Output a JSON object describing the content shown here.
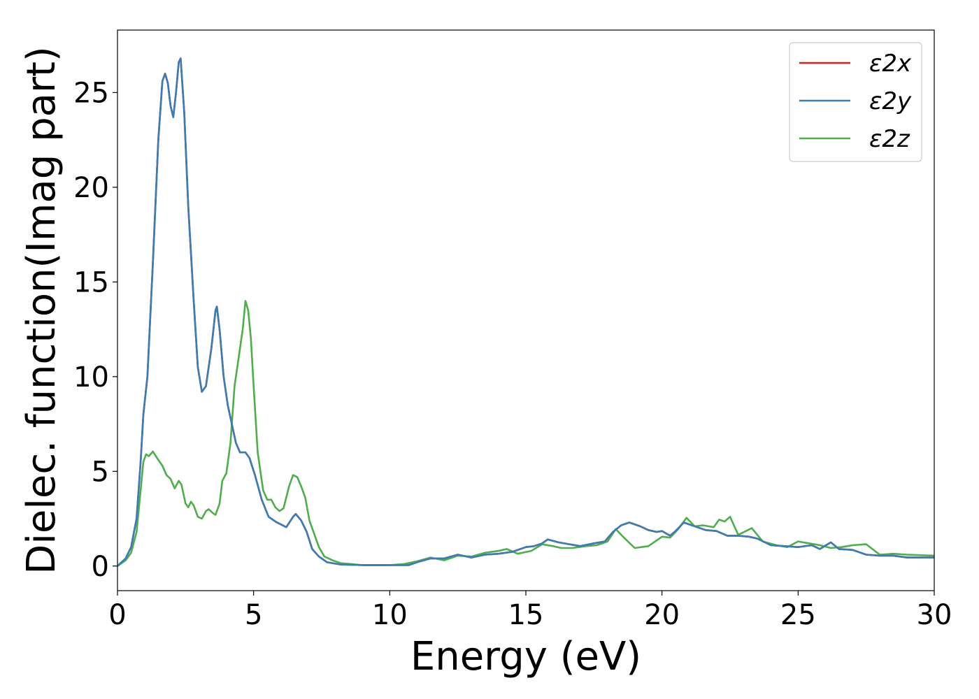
{
  "chart_data": {
    "type": "line",
    "title": "",
    "xlabel": "Energy (eV)",
    "ylabel": "Dielec. function(Imag part)",
    "xlim": [
      0,
      30
    ],
    "ylim": [
      -1.3,
      28.3
    ],
    "xticks": [
      0,
      5,
      10,
      15,
      20,
      25,
      30
    ],
    "yticks": [
      0,
      5,
      10,
      15,
      20,
      25
    ],
    "grid": false,
    "legend_position": "top-right",
    "series": [
      {
        "name": "ε2x",
        "color": "#e41a1c",
        "points": [
          [
            0,
            0
          ],
          [
            0.3,
            0.4
          ],
          [
            0.5,
            1
          ],
          [
            0.7,
            2.5
          ],
          [
            0.85,
            5.5
          ],
          [
            0.95,
            8
          ],
          [
            1.1,
            10
          ],
          [
            1.3,
            16
          ],
          [
            1.5,
            22.5
          ],
          [
            1.65,
            25.6
          ],
          [
            1.75,
            26
          ],
          [
            1.85,
            25.5
          ],
          [
            1.95,
            24.3
          ],
          [
            2.05,
            23.7
          ],
          [
            2.15,
            25
          ],
          [
            2.25,
            26.6
          ],
          [
            2.32,
            26.8
          ],
          [
            2.45,
            24
          ],
          [
            2.6,
            19
          ],
          [
            2.8,
            14
          ],
          [
            2.95,
            10.5
          ],
          [
            3.1,
            9.2
          ],
          [
            3.25,
            9.5
          ],
          [
            3.45,
            11.5
          ],
          [
            3.6,
            13.5
          ],
          [
            3.65,
            13.7
          ],
          [
            3.75,
            12.5
          ],
          [
            3.9,
            10
          ],
          [
            4.05,
            8.5
          ],
          [
            4.2,
            7.5
          ],
          [
            4.35,
            6.5
          ],
          [
            4.5,
            6
          ],
          [
            4.7,
            6
          ],
          [
            4.85,
            5.7
          ],
          [
            5.05,
            4.8
          ],
          [
            5.3,
            3.5
          ],
          [
            5.55,
            2.6
          ],
          [
            5.8,
            2.35
          ],
          [
            6.0,
            2.2
          ],
          [
            6.2,
            2.05
          ],
          [
            6.45,
            2.6
          ],
          [
            6.55,
            2.75
          ],
          [
            6.75,
            2.4
          ],
          [
            6.95,
            1.8
          ],
          [
            7.15,
            0.9
          ],
          [
            7.4,
            0.5
          ],
          [
            7.7,
            0.2
          ],
          [
            8.2,
            0.08
          ],
          [
            9,
            0.05
          ],
          [
            10,
            0.05
          ],
          [
            10.7,
            0.05
          ],
          [
            11,
            0.2
          ],
          [
            11.5,
            0.4
          ],
          [
            12,
            0.4
          ],
          [
            12.5,
            0.6
          ],
          [
            13,
            0.45
          ],
          [
            13.5,
            0.6
          ],
          [
            14,
            0.65
          ],
          [
            14.5,
            0.75
          ],
          [
            15,
            1
          ],
          [
            15.3,
            1.05
          ],
          [
            15.6,
            1.2
          ],
          [
            15.8,
            1.4
          ],
          [
            16.2,
            1.25
          ],
          [
            16.6,
            1.15
          ],
          [
            17,
            1.05
          ],
          [
            17.5,
            1.2
          ],
          [
            17.9,
            1.3
          ],
          [
            18.2,
            1.8
          ],
          [
            18.5,
            2.15
          ],
          [
            18.8,
            2.3
          ],
          [
            19.2,
            2.1
          ],
          [
            19.5,
            1.9
          ],
          [
            19.8,
            1.8
          ],
          [
            20,
            1.85
          ],
          [
            20.3,
            1.6
          ],
          [
            20.5,
            1.85
          ],
          [
            20.8,
            2.3
          ],
          [
            21.2,
            2.1
          ],
          [
            21.6,
            1.9
          ],
          [
            22,
            1.85
          ],
          [
            22.4,
            1.6
          ],
          [
            22.8,
            1.6
          ],
          [
            23.2,
            1.55
          ],
          [
            23.5,
            1.45
          ],
          [
            24,
            1.1
          ],
          [
            24.5,
            1.05
          ],
          [
            25,
            1
          ],
          [
            25.5,
            1.1
          ],
          [
            25.8,
            0.9
          ],
          [
            26.2,
            1.25
          ],
          [
            26.5,
            0.9
          ],
          [
            27,
            0.85
          ],
          [
            27.5,
            0.6
          ],
          [
            28,
            0.55
          ],
          [
            28.5,
            0.55
          ],
          [
            29,
            0.45
          ],
          [
            30,
            0.45
          ]
        ]
      },
      {
        "name": "ε2y",
        "color": "#377eb8",
        "points": [
          [
            0,
            0
          ],
          [
            0.3,
            0.4
          ],
          [
            0.5,
            1
          ],
          [
            0.7,
            2.5
          ],
          [
            0.85,
            5.5
          ],
          [
            0.95,
            8
          ],
          [
            1.1,
            10
          ],
          [
            1.3,
            16
          ],
          [
            1.5,
            22.5
          ],
          [
            1.65,
            25.6
          ],
          [
            1.75,
            26
          ],
          [
            1.85,
            25.5
          ],
          [
            1.95,
            24.3
          ],
          [
            2.05,
            23.7
          ],
          [
            2.15,
            25
          ],
          [
            2.25,
            26.6
          ],
          [
            2.32,
            26.8
          ],
          [
            2.45,
            24
          ],
          [
            2.6,
            19
          ],
          [
            2.8,
            14
          ],
          [
            2.95,
            10.5
          ],
          [
            3.1,
            9.2
          ],
          [
            3.25,
            9.5
          ],
          [
            3.45,
            11.5
          ],
          [
            3.6,
            13.5
          ],
          [
            3.65,
            13.7
          ],
          [
            3.75,
            12.5
          ],
          [
            3.9,
            10
          ],
          [
            4.05,
            8.5
          ],
          [
            4.2,
            7.5
          ],
          [
            4.35,
            6.5
          ],
          [
            4.5,
            6
          ],
          [
            4.7,
            6
          ],
          [
            4.85,
            5.7
          ],
          [
            5.05,
            4.8
          ],
          [
            5.3,
            3.5
          ],
          [
            5.55,
            2.6
          ],
          [
            5.8,
            2.35
          ],
          [
            6.0,
            2.2
          ],
          [
            6.2,
            2.05
          ],
          [
            6.45,
            2.6
          ],
          [
            6.55,
            2.75
          ],
          [
            6.75,
            2.4
          ],
          [
            6.95,
            1.8
          ],
          [
            7.15,
            0.9
          ],
          [
            7.4,
            0.5
          ],
          [
            7.7,
            0.2
          ],
          [
            8.2,
            0.08
          ],
          [
            9,
            0.05
          ],
          [
            10,
            0.05
          ],
          [
            10.7,
            0.05
          ],
          [
            11,
            0.2
          ],
          [
            11.5,
            0.4
          ],
          [
            12,
            0.4
          ],
          [
            12.5,
            0.6
          ],
          [
            13,
            0.45
          ],
          [
            13.5,
            0.6
          ],
          [
            14,
            0.65
          ],
          [
            14.5,
            0.75
          ],
          [
            15,
            1
          ],
          [
            15.3,
            1.05
          ],
          [
            15.6,
            1.2
          ],
          [
            15.8,
            1.4
          ],
          [
            16.2,
            1.25
          ],
          [
            16.6,
            1.15
          ],
          [
            17,
            1.05
          ],
          [
            17.5,
            1.2
          ],
          [
            17.9,
            1.3
          ],
          [
            18.2,
            1.8
          ],
          [
            18.5,
            2.15
          ],
          [
            18.8,
            2.3
          ],
          [
            19.2,
            2.1
          ],
          [
            19.5,
            1.9
          ],
          [
            19.8,
            1.8
          ],
          [
            20,
            1.85
          ],
          [
            20.3,
            1.6
          ],
          [
            20.5,
            1.85
          ],
          [
            20.8,
            2.3
          ],
          [
            21.2,
            2.1
          ],
          [
            21.6,
            1.9
          ],
          [
            22,
            1.85
          ],
          [
            22.4,
            1.6
          ],
          [
            22.8,
            1.6
          ],
          [
            23.2,
            1.55
          ],
          [
            23.5,
            1.45
          ],
          [
            24,
            1.1
          ],
          [
            24.5,
            1.05
          ],
          [
            25,
            1
          ],
          [
            25.5,
            1.1
          ],
          [
            25.8,
            0.9
          ],
          [
            26.2,
            1.25
          ],
          [
            26.5,
            0.9
          ],
          [
            27,
            0.85
          ],
          [
            27.5,
            0.6
          ],
          [
            28,
            0.55
          ],
          [
            28.5,
            0.55
          ],
          [
            29,
            0.45
          ],
          [
            30,
            0.45
          ]
        ]
      },
      {
        "name": "ε2z",
        "color": "#4daf4a",
        "points": [
          [
            0,
            0
          ],
          [
            0.3,
            0.3
          ],
          [
            0.5,
            0.7
          ],
          [
            0.7,
            1.8
          ],
          [
            0.85,
            4
          ],
          [
            0.95,
            5.5
          ],
          [
            1.05,
            5.9
          ],
          [
            1.15,
            5.8
          ],
          [
            1.3,
            6.05
          ],
          [
            1.5,
            5.6
          ],
          [
            1.65,
            5.3
          ],
          [
            1.8,
            4.8
          ],
          [
            1.95,
            4.6
          ],
          [
            2.1,
            4.1
          ],
          [
            2.25,
            4.5
          ],
          [
            2.35,
            4.3
          ],
          [
            2.5,
            3.3
          ],
          [
            2.6,
            3.1
          ],
          [
            2.7,
            3.4
          ],
          [
            2.8,
            3.2
          ],
          [
            2.95,
            2.6
          ],
          [
            3.1,
            2.5
          ],
          [
            3.25,
            2.9
          ],
          [
            3.35,
            3
          ],
          [
            3.5,
            2.8
          ],
          [
            3.6,
            2.7
          ],
          [
            3.75,
            3.3
          ],
          [
            3.85,
            4.5
          ],
          [
            4.0,
            4.9
          ],
          [
            4.15,
            6.5
          ],
          [
            4.3,
            9.5
          ],
          [
            4.45,
            11
          ],
          [
            4.6,
            12.5
          ],
          [
            4.7,
            14
          ],
          [
            4.8,
            13.5
          ],
          [
            4.9,
            12
          ],
          [
            5.0,
            9.5
          ],
          [
            5.15,
            6
          ],
          [
            5.35,
            4
          ],
          [
            5.5,
            3.5
          ],
          [
            5.65,
            3.5
          ],
          [
            5.8,
            3.1
          ],
          [
            5.95,
            2.9
          ],
          [
            6.1,
            3.05
          ],
          [
            6.3,
            4.2
          ],
          [
            6.45,
            4.8
          ],
          [
            6.6,
            4.7
          ],
          [
            6.75,
            4.2
          ],
          [
            6.9,
            3.6
          ],
          [
            7.05,
            2.4
          ],
          [
            7.2,
            1.8
          ],
          [
            7.4,
            1
          ],
          [
            7.6,
            0.5
          ],
          [
            7.9,
            0.3
          ],
          [
            8.2,
            0.15
          ],
          [
            9,
            0.05
          ],
          [
            10,
            0.05
          ],
          [
            10.5,
            0.1
          ],
          [
            11,
            0.25
          ],
          [
            11.5,
            0.45
          ],
          [
            12,
            0.3
          ],
          [
            12.5,
            0.55
          ],
          [
            13,
            0.5
          ],
          [
            13.5,
            0.7
          ],
          [
            14,
            0.8
          ],
          [
            14.3,
            0.9
          ],
          [
            14.7,
            0.65
          ],
          [
            15.2,
            0.8
          ],
          [
            15.6,
            1.15
          ],
          [
            16,
            1.05
          ],
          [
            16.3,
            0.95
          ],
          [
            16.7,
            0.95
          ],
          [
            17.2,
            1.05
          ],
          [
            17.6,
            1.1
          ],
          [
            18.0,
            1.3
          ],
          [
            18.3,
            1.95
          ],
          [
            18.6,
            1.5
          ],
          [
            19,
            0.95
          ],
          [
            19.5,
            1.05
          ],
          [
            20,
            1.55
          ],
          [
            20.3,
            1.5
          ],
          [
            20.6,
            1.95
          ],
          [
            20.9,
            2.55
          ],
          [
            21.2,
            2.1
          ],
          [
            21.5,
            2.15
          ],
          [
            21.9,
            2.05
          ],
          [
            22.1,
            2.45
          ],
          [
            22.3,
            2.35
          ],
          [
            22.5,
            2.6
          ],
          [
            22.8,
            1.65
          ],
          [
            23.3,
            2.0
          ],
          [
            23.7,
            1.3
          ],
          [
            24.2,
            1.1
          ],
          [
            24.6,
            1.0
          ],
          [
            25,
            1.3
          ],
          [
            25.4,
            1.2
          ],
          [
            25.8,
            1.1
          ],
          [
            26.2,
            0.95
          ],
          [
            26.6,
            1.0
          ],
          [
            27,
            1.1
          ],
          [
            27.5,
            1.15
          ],
          [
            28,
            0.6
          ],
          [
            28.5,
            0.65
          ],
          [
            29,
            0.6
          ],
          [
            30,
            0.55
          ]
        ]
      }
    ]
  }
}
